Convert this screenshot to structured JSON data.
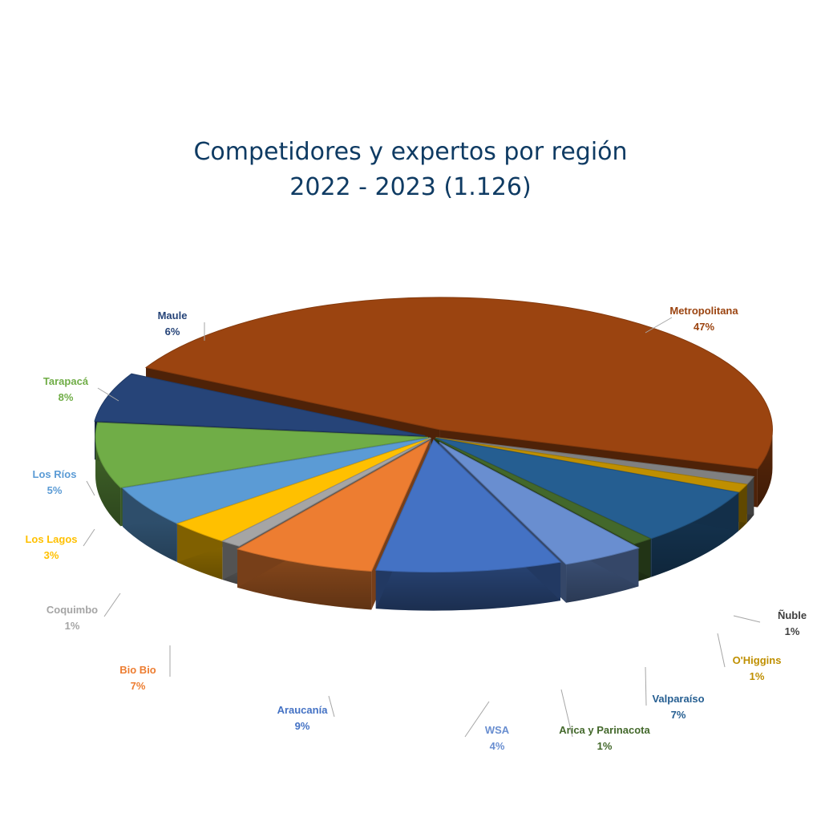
{
  "chart_data": {
    "type": "pie",
    "title_lines": [
      "Competidores y expertos por región",
      "2022 - 2023 (1.126)"
    ],
    "slices": [
      {
        "name": "Metropolitana",
        "percent": 47,
        "label": "47%",
        "color": "#9b4410"
      },
      {
        "name": "Ñuble",
        "percent": 1,
        "label": "1%",
        "color": "#808080"
      },
      {
        "name": "O'Higgins",
        "percent": 1,
        "label": "1%",
        "color": "#bf8f00"
      },
      {
        "name": "Valparaíso",
        "percent": 7,
        "label": "7%",
        "color": "#255e91"
      },
      {
        "name": "Arica y Parinacota",
        "percent": 1,
        "label": "1%",
        "color": "#43682b"
      },
      {
        "name": "WSA",
        "percent": 4,
        "label": "4%",
        "color": "#698ed0"
      },
      {
        "name": "Araucanía",
        "percent": 9,
        "label": "9%",
        "color": "#4472c4"
      },
      {
        "name": "Bio Bio",
        "percent": 7,
        "label": "7%",
        "color": "#ed7d31"
      },
      {
        "name": "Coquimbo",
        "percent": 1,
        "label": "1%",
        "color": "#a5a5a5"
      },
      {
        "name": "Los Lagos",
        "percent": 3,
        "label": "3%",
        "color": "#ffc000"
      },
      {
        "name": "Los Ríos",
        "percent": 5,
        "label": "5%",
        "color": "#5b9bd5"
      },
      {
        "name": "Tarapacá",
        "percent": 8,
        "label": "8%",
        "color": "#70ad47"
      },
      {
        "name": "Maule",
        "percent": 6,
        "label": "6%",
        "color": "#264478"
      }
    ],
    "label_colors": {
      "Metropolitana": "#9b4410",
      "Ñuble": "#404040",
      "O'Higgins": "#bf8f00",
      "Valparaíso": "#255e91",
      "Arica y Parinacota": "#43682b",
      "WSA": "#698ed0",
      "Araucanía": "#4472c4",
      "Bio Bio": "#ed7d31",
      "Coquimbo": "#a5a5a5",
      "Los Lagos": "#ffc000",
      "Los Ríos": "#5b9bd5",
      "Tarapacá": "#70ad47",
      "Maule": "#264478"
    },
    "style": "3d-exploded"
  }
}
